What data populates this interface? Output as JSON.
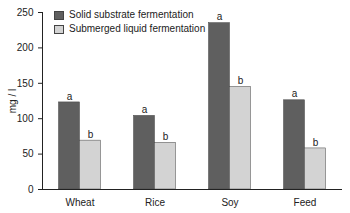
{
  "chart_data": {
    "type": "bar",
    "categories": [
      "Wheat",
      "Rice",
      "Soy",
      "Feed"
    ],
    "series": [
      {
        "name": "Solid substrate fermentation",
        "color": "#5f5f5f",
        "values": [
          123,
          104,
          235,
          126
        ],
        "annotations": [
          "a",
          "a",
          "a",
          "a"
        ]
      },
      {
        "name": "Submerged liquid fermentation",
        "color": "#d3d3d3",
        "values": [
          69,
          66,
          145,
          58
        ],
        "annotations": [
          "b",
          "b",
          "b",
          "b"
        ]
      }
    ],
    "y_label": "mg / l",
    "ylim": [
      0,
      250
    ],
    "yticks": [
      0,
      50,
      100,
      150,
      200,
      250
    ],
    "legend": "top-left",
    "grid": false
  }
}
